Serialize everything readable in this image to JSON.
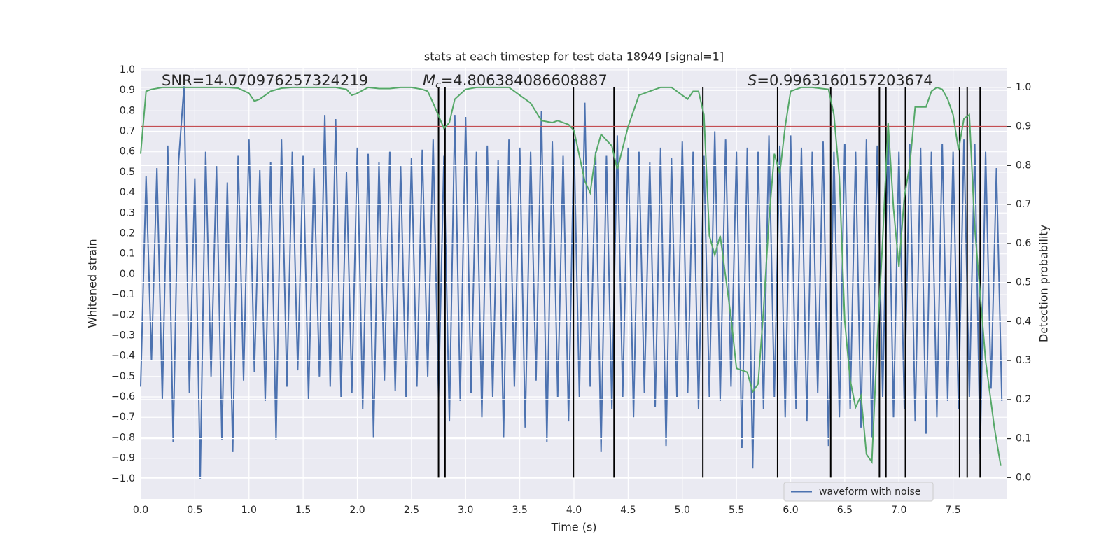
{
  "chart_data": {
    "type": "line",
    "title": "stats at each timestep for test data 18949 [signal=1]",
    "xlabel": "Time (s)",
    "ylabel": "Whitened strain",
    "y2label": "Detection probability",
    "xlim": [
      0,
      8
    ],
    "ylim": [
      -1.1,
      1.01
    ],
    "y2lim": [
      -0.055,
      1.05
    ],
    "grid": true,
    "xticks": [
      {
        "value": 0,
        "label": "0.0"
      },
      0.5,
      {
        "value": 1,
        "label": "1.0"
      },
      1.5,
      {
        "value": 2,
        "label": "2.0"
      },
      2.5,
      {
        "value": 3,
        "label": "3.0"
      },
      3.5,
      {
        "value": 4,
        "label": "4.0"
      },
      4.5,
      {
        "value": 5,
        "label": "5.0"
      },
      5.5,
      {
        "value": 6,
        "label": "6.0"
      },
      6.5,
      {
        "value": 7,
        "label": "7.0"
      },
      7.5
    ],
    "yticks": [
      {
        "value": -1,
        "label": "−1.0"
      },
      {
        "value": -0.9,
        "label": "−0.9"
      },
      {
        "value": -0.8,
        "label": "−0.8"
      },
      {
        "value": -0.7,
        "label": "−0.7"
      },
      {
        "value": -0.6,
        "label": "−0.6"
      },
      {
        "value": -0.5,
        "label": "−0.5"
      },
      {
        "value": -0.4,
        "label": "−0.4"
      },
      {
        "value": -0.3,
        "label": "−0.3"
      },
      {
        "value": -0.2,
        "label": "−0.2"
      },
      {
        "value": -0.1,
        "label": "−0.1"
      },
      {
        "value": 0,
        "label": "0.0"
      },
      0.1,
      0.2,
      0.3,
      0.4,
      0.5,
      0.6,
      0.7,
      0.8,
      0.9,
      {
        "value": 1,
        "label": "1.0"
      }
    ],
    "y2ticks": [
      {
        "value": 0,
        "label": "0.0"
      },
      0.1,
      0.2,
      0.3,
      0.4,
      0.5,
      0.6,
      0.7,
      0.8,
      0.9,
      {
        "value": 1,
        "label": "1.0"
      }
    ],
    "annotations": [
      {
        "text": "SNR=14.070976257324219"
      },
      {
        "symbol": "M",
        "subscript": "c",
        "text": "=4.806384086608887"
      },
      {
        "symbol": "S",
        "text": "=0.9963160157203674"
      }
    ],
    "series": [
      {
        "name": "waveform with noise",
        "color": "#4c72b0",
        "x": [
          0,
          0.05,
          0.1,
          0.15,
          0.2,
          0.25,
          0.3,
          0.35,
          0.4,
          0.45,
          0.5,
          0.55,
          0.6,
          0.65,
          0.7,
          0.75,
          0.8,
          0.85,
          0.9,
          0.95,
          1,
          1.05,
          1.1,
          1.15,
          1.2,
          1.25,
          1.3,
          1.35,
          1.4,
          1.45,
          1.5,
          1.55,
          1.6,
          1.65,
          1.7,
          1.75,
          1.8,
          1.85,
          1.9,
          1.95,
          2,
          2.05,
          2.1,
          2.15,
          2.2,
          2.25,
          2.3,
          2.35,
          2.4,
          2.45,
          2.5,
          2.55,
          2.6,
          2.65,
          2.7,
          2.75,
          2.8,
          2.85,
          2.9,
          2.95,
          3,
          3.05,
          3.1,
          3.15,
          3.2,
          3.25,
          3.3,
          3.35,
          3.4,
          3.45,
          3.5,
          3.55,
          3.6,
          3.65,
          3.7,
          3.75,
          3.8,
          3.85,
          3.9,
          3.95,
          4,
          4.05,
          4.1,
          4.15,
          4.2,
          4.25,
          4.3,
          4.35,
          4.4,
          4.45,
          4.5,
          4.55,
          4.6,
          4.65,
          4.7,
          4.75,
          4.8,
          4.85,
          4.9,
          4.95,
          5,
          5.05,
          5.1,
          5.15,
          5.2,
          5.25,
          5.3,
          5.35,
          5.4,
          5.45,
          5.5,
          5.55,
          5.6,
          5.65,
          5.7,
          5.75,
          5.8,
          5.85,
          5.9,
          5.95,
          6,
          6.05,
          6.1,
          6.15,
          6.2,
          6.25,
          6.3,
          6.35,
          6.4,
          6.45,
          6.5,
          6.55,
          6.6,
          6.65,
          6.7,
          6.75,
          6.8,
          6.85,
          6.9,
          6.95,
          7,
          7.05,
          7.1,
          7.15,
          7.2,
          7.25,
          7.3,
          7.35,
          7.4,
          7.45,
          7.5,
          7.55,
          7.6,
          7.65,
          7.7,
          7.75,
          7.8,
          7.85,
          7.9,
          7.95
        ],
        "values": [
          -0.55,
          0.48,
          -0.42,
          0.52,
          -0.61,
          0.63,
          -0.82,
          0.55,
          0.92,
          -0.58,
          0.47,
          -1.0,
          0.6,
          -0.5,
          0.53,
          -0.81,
          0.45,
          -0.87,
          0.58,
          -0.52,
          0.66,
          -0.48,
          0.51,
          -0.62,
          0.55,
          -0.81,
          0.66,
          -0.55,
          0.6,
          -0.47,
          0.58,
          -0.61,
          0.52,
          -0.5,
          0.78,
          -0.55,
          0.76,
          -0.6,
          0.5,
          -0.58,
          0.62,
          -0.66,
          0.59,
          -0.8,
          0.55,
          -0.52,
          0.6,
          -0.57,
          0.53,
          -0.6,
          0.57,
          -0.55,
          0.61,
          -0.5,
          0.66,
          -0.6,
          0.58,
          -0.72,
          0.78,
          -0.62,
          0.77,
          -0.58,
          0.6,
          -0.7,
          0.63,
          -0.6,
          0.56,
          -0.8,
          0.66,
          -0.55,
          0.62,
          -0.75,
          0.6,
          -0.52,
          0.8,
          -0.82,
          0.65,
          -0.6,
          0.58,
          -0.72,
          0.66,
          -0.6,
          0.84,
          -0.55,
          0.6,
          -0.87,
          0.58,
          -0.66,
          0.68,
          -0.6,
          0.62,
          -0.7,
          0.6,
          -0.58,
          0.55,
          -0.65,
          0.62,
          -0.84,
          0.57,
          -0.6,
          0.65,
          -0.58,
          0.6,
          -0.66,
          0.58,
          -0.6,
          0.7,
          -0.62,
          0.66,
          -0.55,
          0.6,
          -0.85,
          0.62,
          -0.95,
          0.6,
          -0.66,
          0.68,
          -0.6,
          0.63,
          -0.7,
          0.68,
          -0.66,
          0.62,
          -0.72,
          0.6,
          -0.58,
          0.65,
          -0.84,
          0.6,
          -0.7,
          0.64,
          -0.66,
          0.6,
          -0.75,
          0.66,
          -0.8,
          0.63,
          -0.6,
          0.7,
          -0.7,
          0.6,
          -0.66,
          0.64,
          -0.72,
          0.62,
          -0.78,
          0.6,
          -0.7,
          0.64,
          -0.62,
          0.6,
          -0.66,
          0.66,
          -0.6,
          0.64,
          -0.88,
          0.6,
          -0.56,
          0.52,
          -0.62
        ]
      },
      {
        "color": "#55a868",
        "axis": "y2",
        "x": [
          0,
          0.05,
          0.1,
          0.2,
          0.3,
          0.4,
          0.5,
          0.6,
          0.7,
          0.8,
          0.9,
          1.0,
          1.05,
          1.1,
          1.2,
          1.3,
          1.4,
          1.5,
          1.6,
          1.7,
          1.8,
          1.9,
          1.95,
          2.0,
          2.1,
          2.2,
          2.3,
          2.4,
          2.5,
          2.6,
          2.65,
          2.7,
          2.8,
          2.85,
          2.9,
          3.0,
          3.1,
          3.2,
          3.3,
          3.4,
          3.5,
          3.6,
          3.7,
          3.8,
          3.85,
          3.95,
          4.0,
          4.1,
          4.15,
          4.2,
          4.25,
          4.35,
          4.4,
          4.5,
          4.6,
          4.7,
          4.8,
          4.9,
          5.0,
          5.05,
          5.1,
          5.15,
          5.2,
          5.25,
          5.3,
          5.35,
          5.45,
          5.5,
          5.6,
          5.65,
          5.7,
          5.75,
          5.8,
          5.85,
          5.9,
          5.95,
          6.0,
          6.1,
          6.2,
          6.35,
          6.4,
          6.45,
          6.5,
          6.55,
          6.6,
          6.65,
          6.7,
          6.75,
          6.8,
          6.85,
          6.9,
          6.95,
          7.0,
          7.05,
          7.1,
          7.15,
          7.25,
          7.3,
          7.35,
          7.4,
          7.45,
          7.5,
          7.55,
          7.6,
          7.65,
          7.7,
          7.8,
          7.88,
          7.94
        ],
        "values": [
          0.83,
          0.99,
          0.995,
          1.0,
          1.0,
          1.0,
          1.0,
          1.0,
          1.0,
          1.0,
          0.998,
          0.985,
          0.965,
          0.97,
          0.99,
          0.998,
          1.0,
          1.0,
          1.0,
          1.0,
          1.0,
          0.995,
          0.98,
          0.985,
          1.0,
          0.997,
          0.997,
          1.0,
          1.0,
          0.995,
          0.99,
          0.96,
          0.895,
          0.91,
          0.97,
          0.995,
          1.0,
          1.0,
          1.0,
          1.0,
          0.98,
          0.96,
          0.915,
          0.91,
          0.915,
          0.905,
          0.89,
          0.76,
          0.73,
          0.83,
          0.88,
          0.85,
          0.79,
          0.9,
          0.98,
          0.99,
          1.0,
          1.0,
          0.98,
          0.97,
          0.99,
          0.99,
          0.93,
          0.62,
          0.57,
          0.62,
          0.41,
          0.28,
          0.27,
          0.22,
          0.24,
          0.43,
          0.66,
          0.83,
          0.78,
          0.9,
          0.99,
          1.0,
          1.0,
          0.995,
          0.93,
          0.77,
          0.4,
          0.25,
          0.18,
          0.21,
          0.06,
          0.04,
          0.35,
          0.61,
          0.91,
          0.69,
          0.54,
          0.72,
          0.8,
          0.95,
          0.95,
          0.99,
          1.0,
          0.995,
          0.97,
          0.93,
          0.84,
          0.92,
          0.93,
          0.64,
          0.3,
          0.13,
          0.03
        ]
      }
    ],
    "vlines": {
      "color": "#000000",
      "axis": "y2",
      "ymin": 0,
      "ymax": 1,
      "x": [
        2.75,
        2.81,
        3.995,
        4.37,
        5.19,
        5.88,
        6.37,
        6.82,
        6.88,
        7.06,
        7.56,
        7.63,
        7.75
      ]
    },
    "hline": {
      "color": "#c44e52",
      "axis": "y2",
      "value": 0.9
    }
  }
}
